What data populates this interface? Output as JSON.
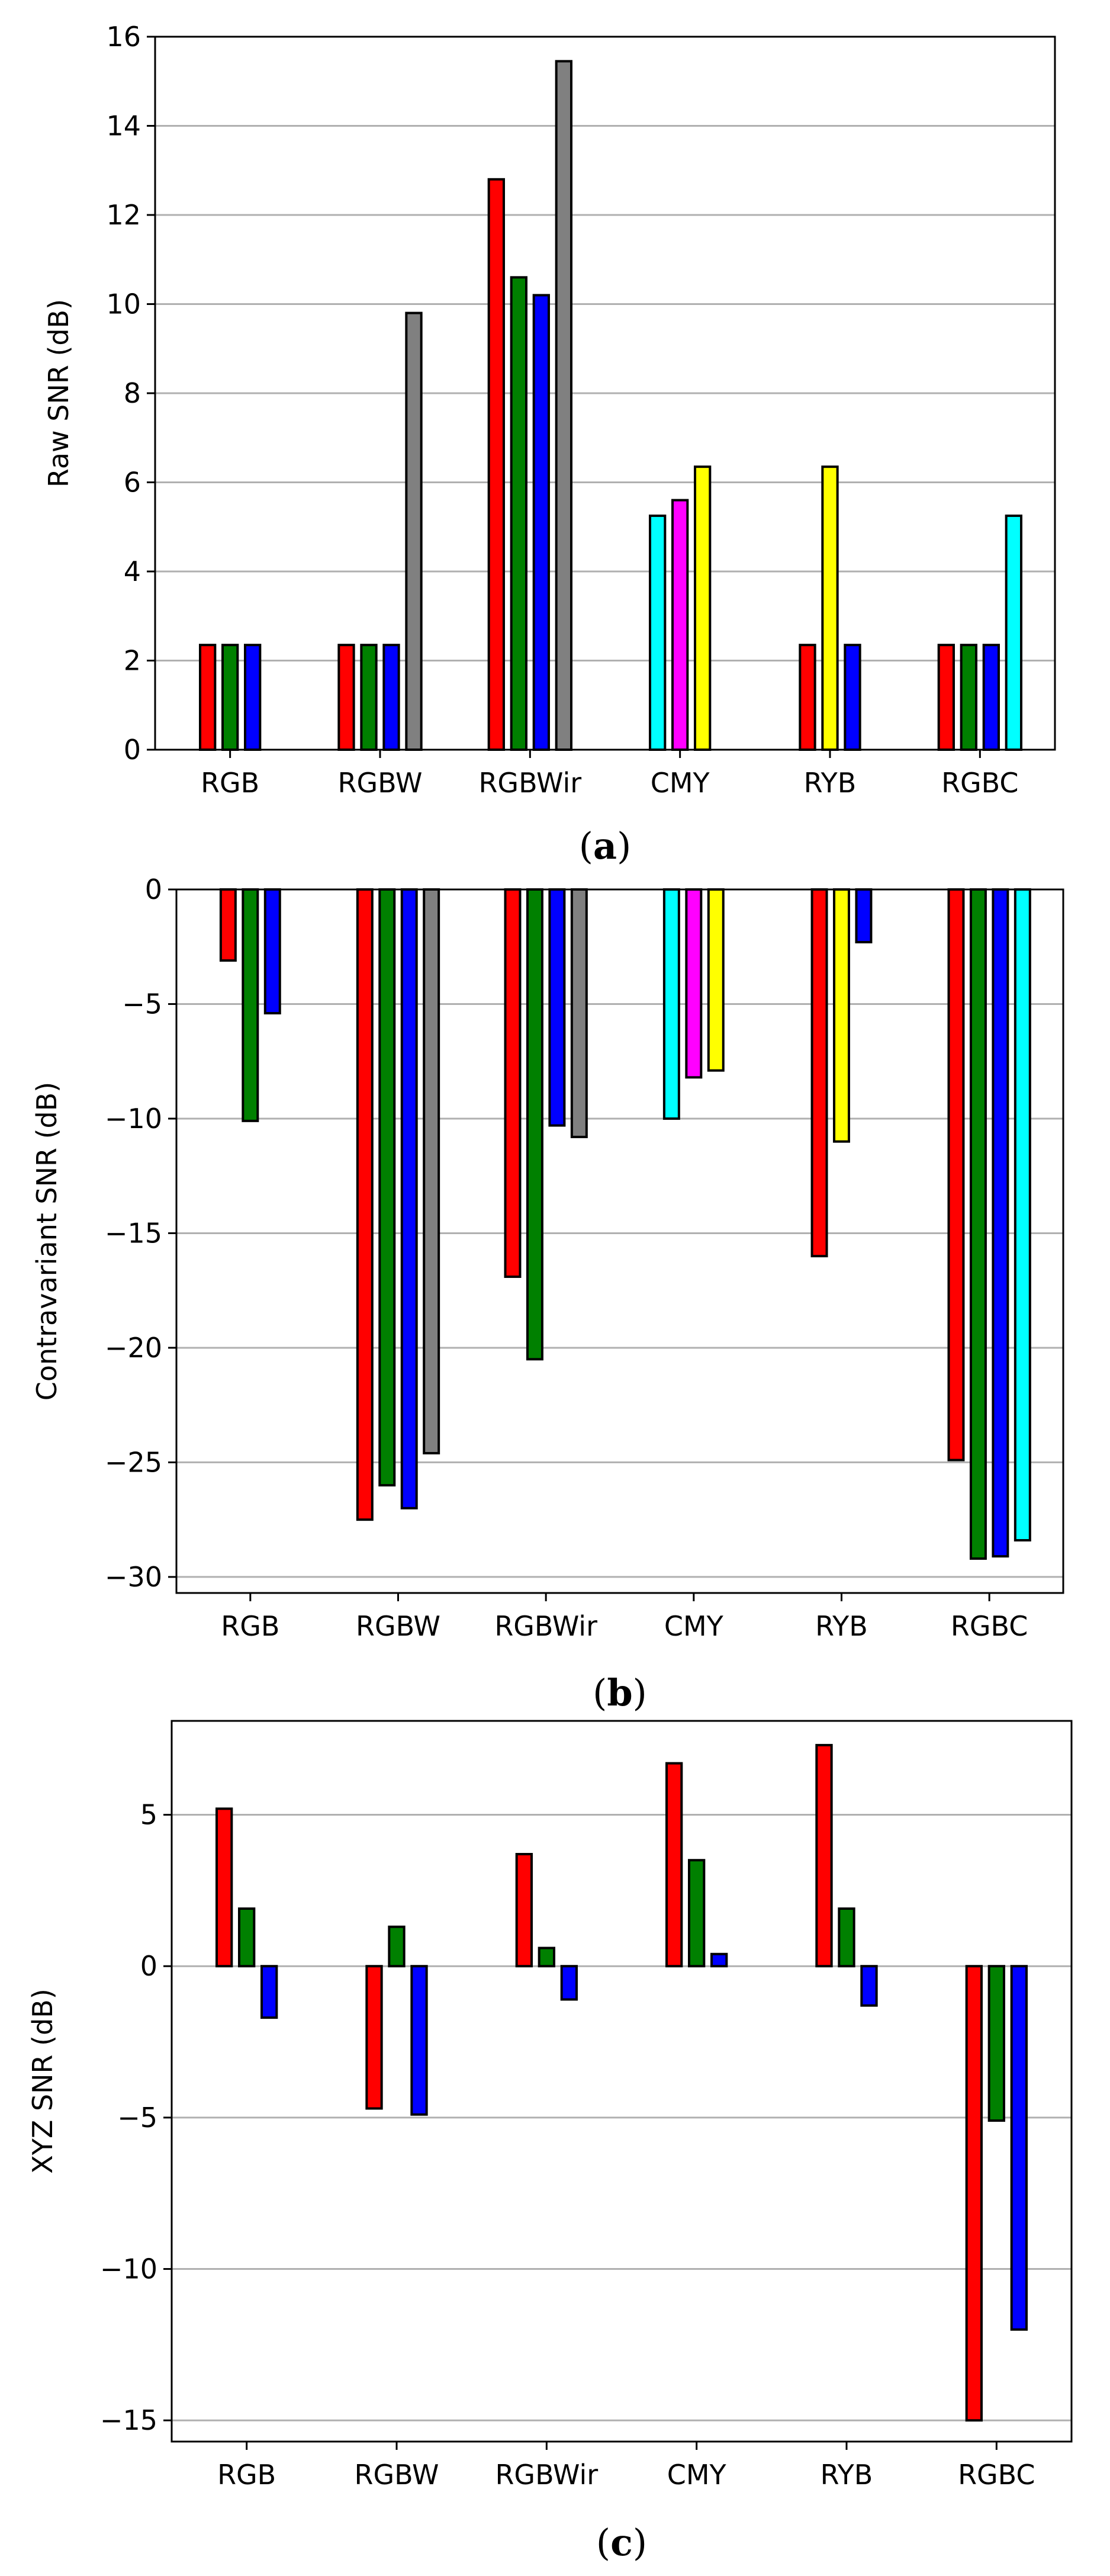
{
  "figure": {
    "colors": {
      "red": "#ff0000",
      "green": "#008000",
      "blue": "#0000ff",
      "gray": "#808080",
      "cyan": "#00ffff",
      "magenta": "#ff00ff",
      "yellow": "#ffff00",
      "grid": "#b0b0b0",
      "edge": "#000000"
    }
  },
  "chart_data": [
    {
      "type": "bar",
      "panel": "a",
      "caption_open": "(",
      "caption_letter": "a",
      "caption_close": ")",
      "title": "",
      "xlabel": "",
      "ylabel": "Raw SNR (dB)",
      "categories": [
        "RGB",
        "RGBW",
        "RGBWir",
        "CMY",
        "RYB",
        "RGBC"
      ],
      "ylim": [
        0,
        16
      ],
      "yticks": [
        0,
        2,
        4,
        6,
        8,
        10,
        12,
        14,
        16
      ],
      "grid": "horizontal",
      "groups": [
        {
          "category": "RGB",
          "bars": [
            {
              "channel": "R",
              "color": "red",
              "value": 2.35
            },
            {
              "channel": "G",
              "color": "green",
              "value": 2.35
            },
            {
              "channel": "B",
              "color": "blue",
              "value": 2.35
            }
          ]
        },
        {
          "category": "RGBW",
          "bars": [
            {
              "channel": "R",
              "color": "red",
              "value": 2.35
            },
            {
              "channel": "G",
              "color": "green",
              "value": 2.35
            },
            {
              "channel": "B",
              "color": "blue",
              "value": 2.35
            },
            {
              "channel": "W",
              "color": "gray",
              "value": 9.8
            }
          ]
        },
        {
          "category": "RGBWir",
          "bars": [
            {
              "channel": "R",
              "color": "red",
              "value": 12.8
            },
            {
              "channel": "G",
              "color": "green",
              "value": 10.6
            },
            {
              "channel": "B",
              "color": "blue",
              "value": 10.2
            },
            {
              "channel": "Wir",
              "color": "gray",
              "value": 15.45
            }
          ]
        },
        {
          "category": "CMY",
          "bars": [
            {
              "channel": "C",
              "color": "cyan",
              "value": 5.25
            },
            {
              "channel": "M",
              "color": "magenta",
              "value": 5.6
            },
            {
              "channel": "Y",
              "color": "yellow",
              "value": 6.35
            }
          ]
        },
        {
          "category": "RYB",
          "bars": [
            {
              "channel": "R",
              "color": "red",
              "value": 2.35
            },
            {
              "channel": "Y",
              "color": "yellow",
              "value": 6.35
            },
            {
              "channel": "B",
              "color": "blue",
              "value": 2.35
            }
          ]
        },
        {
          "category": "RGBC",
          "bars": [
            {
              "channel": "R",
              "color": "red",
              "value": 2.35
            },
            {
              "channel": "G",
              "color": "green",
              "value": 2.35
            },
            {
              "channel": "B",
              "color": "blue",
              "value": 2.35
            },
            {
              "channel": "C",
              "color": "cyan",
              "value": 5.25
            }
          ]
        }
      ]
    },
    {
      "type": "bar",
      "panel": "b",
      "caption_open": "(",
      "caption_letter": "b",
      "caption_close": ")",
      "title": "",
      "xlabel": "",
      "ylabel": "Contravariant SNR (dB)",
      "categories": [
        "RGB",
        "RGBW",
        "RGBWir",
        "CMY",
        "RYB",
        "RGBC"
      ],
      "ylim": [
        -30.7,
        0
      ],
      "yticks": [
        0,
        -5,
        -10,
        -15,
        -20,
        -25,
        -30
      ],
      "ytick_labels": [
        "0",
        "−5",
        "−10",
        "−15",
        "−20",
        "−25",
        "−30"
      ],
      "grid": "horizontal",
      "groups": [
        {
          "category": "RGB",
          "bars": [
            {
              "channel": "R",
              "color": "red",
              "value": -3.1
            },
            {
              "channel": "G",
              "color": "green",
              "value": -10.1
            },
            {
              "channel": "B",
              "color": "blue",
              "value": -5.4
            }
          ]
        },
        {
          "category": "RGBW",
          "bars": [
            {
              "channel": "R",
              "color": "red",
              "value": -27.5
            },
            {
              "channel": "G",
              "color": "green",
              "value": -26.0
            },
            {
              "channel": "B",
              "color": "blue",
              "value": -27.0
            },
            {
              "channel": "W",
              "color": "gray",
              "value": -24.6
            }
          ]
        },
        {
          "category": "RGBWir",
          "bars": [
            {
              "channel": "R",
              "color": "red",
              "value": -16.9
            },
            {
              "channel": "G",
              "color": "green",
              "value": -20.5
            },
            {
              "channel": "B",
              "color": "blue",
              "value": -10.3
            },
            {
              "channel": "Wir",
              "color": "gray",
              "value": -10.8
            }
          ]
        },
        {
          "category": "CMY",
          "bars": [
            {
              "channel": "C",
              "color": "cyan",
              "value": -10.0
            },
            {
              "channel": "M",
              "color": "magenta",
              "value": -8.2
            },
            {
              "channel": "Y",
              "color": "yellow",
              "value": -7.9
            }
          ]
        },
        {
          "category": "RYB",
          "bars": [
            {
              "channel": "R",
              "color": "red",
              "value": -16.0
            },
            {
              "channel": "Y",
              "color": "yellow",
              "value": -11.0
            },
            {
              "channel": "B",
              "color": "blue",
              "value": -2.3
            }
          ]
        },
        {
          "category": "RGBC",
          "bars": [
            {
              "channel": "R",
              "color": "red",
              "value": -24.9
            },
            {
              "channel": "G",
              "color": "green",
              "value": -29.2
            },
            {
              "channel": "B",
              "color": "blue",
              "value": -29.1
            },
            {
              "channel": "C",
              "color": "cyan",
              "value": -28.4
            }
          ]
        }
      ]
    },
    {
      "type": "bar",
      "panel": "c",
      "caption_open": "(",
      "caption_letter": "c",
      "caption_close": ")",
      "title": "",
      "xlabel": "",
      "ylabel": "XYZ SNR (dB)",
      "categories": [
        "RGB",
        "RGBW",
        "RGBWir",
        "CMY",
        "RYB",
        "RGBC"
      ],
      "ylim": [
        -15.7,
        8.1
      ],
      "yticks": [
        5,
        0,
        -5,
        -10,
        -15
      ],
      "ytick_labels": [
        "5",
        "0",
        "−5",
        "−10",
        "−15"
      ],
      "grid": "horizontal",
      "groups": [
        {
          "category": "RGB",
          "bars": [
            {
              "channel": "X",
              "color": "red",
              "value": 5.2
            },
            {
              "channel": "Y",
              "color": "green",
              "value": 1.9
            },
            {
              "channel": "Z",
              "color": "blue",
              "value": -1.7
            }
          ]
        },
        {
          "category": "RGBW",
          "bars": [
            {
              "channel": "X",
              "color": "red",
              "value": -4.7
            },
            {
              "channel": "Y",
              "color": "green",
              "value": 1.3
            },
            {
              "channel": "Z",
              "color": "blue",
              "value": -4.9
            }
          ]
        },
        {
          "category": "RGBWir",
          "bars": [
            {
              "channel": "X",
              "color": "red",
              "value": 3.7
            },
            {
              "channel": "Y",
              "color": "green",
              "value": 0.6
            },
            {
              "channel": "Z",
              "color": "blue",
              "value": -1.1
            }
          ]
        },
        {
          "category": "CMY",
          "bars": [
            {
              "channel": "X",
              "color": "red",
              "value": 6.7
            },
            {
              "channel": "Y",
              "color": "green",
              "value": 3.5
            },
            {
              "channel": "Z",
              "color": "blue",
              "value": 0.4
            }
          ]
        },
        {
          "category": "RYB",
          "bars": [
            {
              "channel": "X",
              "color": "red",
              "value": 7.3
            },
            {
              "channel": "Y",
              "color": "green",
              "value": 1.9
            },
            {
              "channel": "Z",
              "color": "blue",
              "value": -1.3
            }
          ]
        },
        {
          "category": "RGBC",
          "bars": [
            {
              "channel": "X",
              "color": "red",
              "value": -15.0
            },
            {
              "channel": "Y",
              "color": "green",
              "value": -5.1
            },
            {
              "channel": "Z",
              "color": "blue",
              "value": -12.0
            }
          ]
        }
      ]
    }
  ]
}
